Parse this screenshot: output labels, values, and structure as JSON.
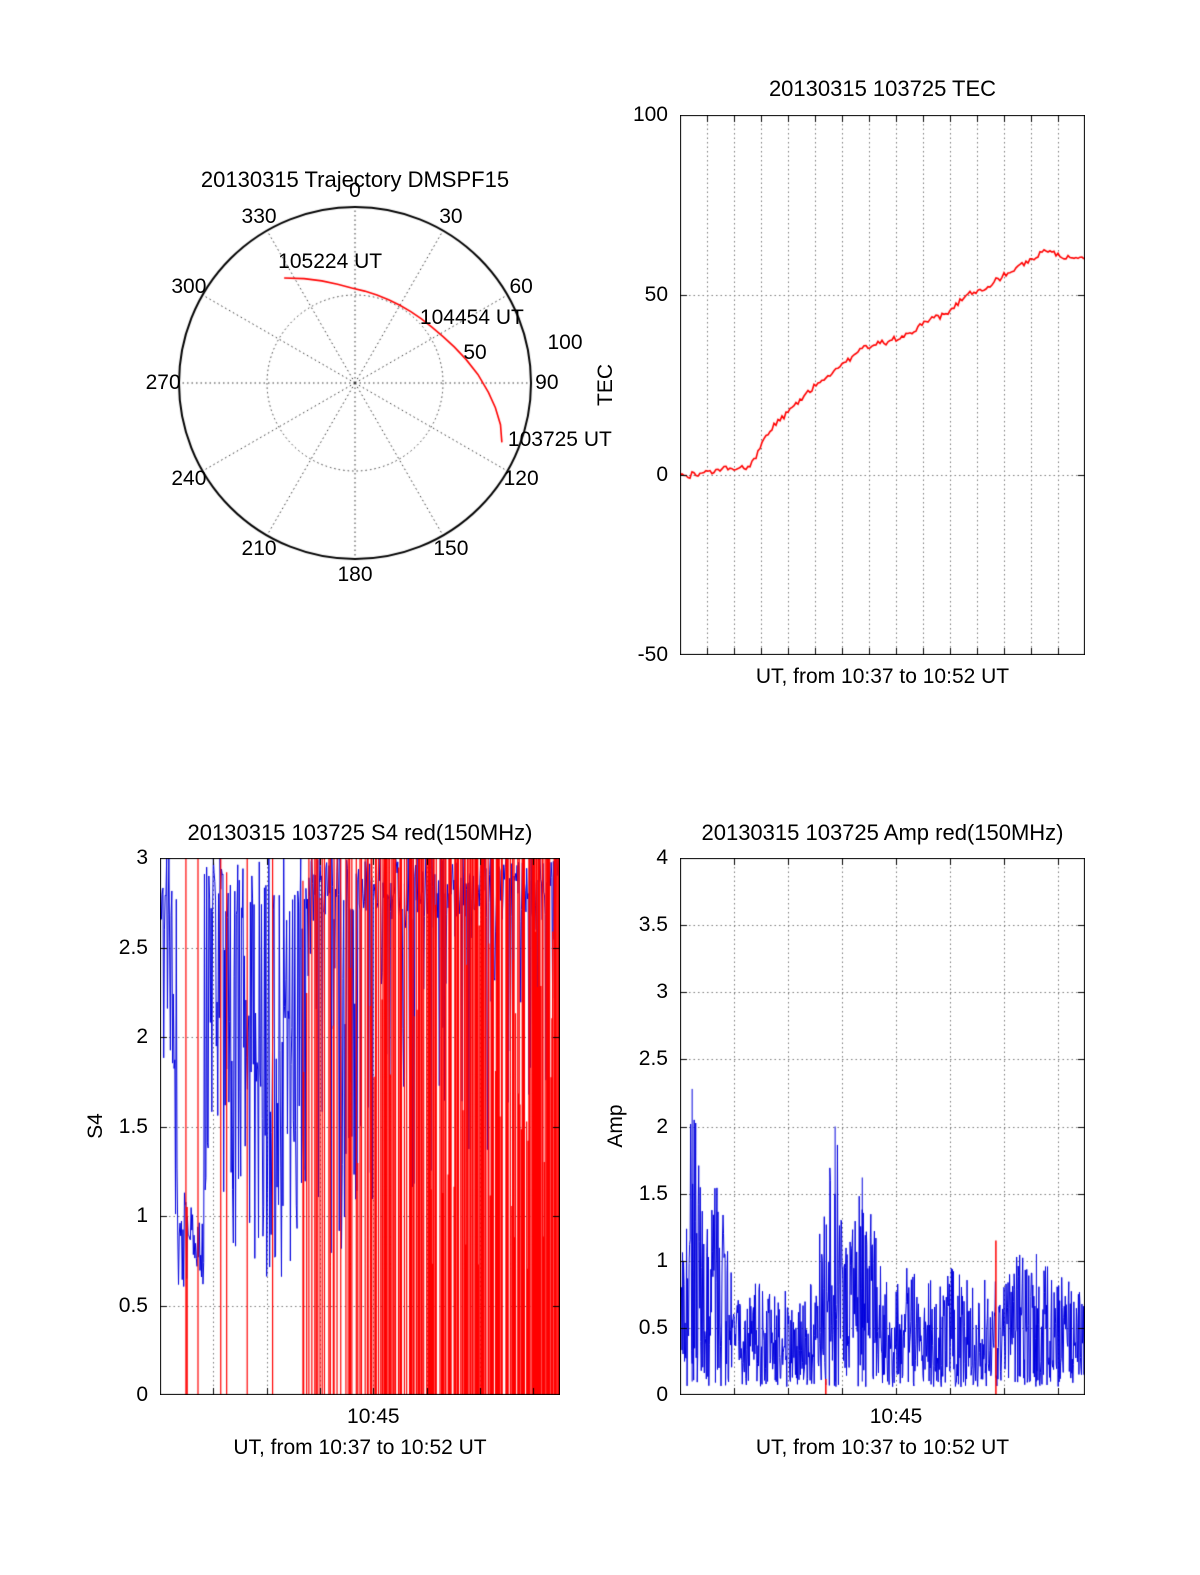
{
  "figure": {
    "background": "#ffffff"
  },
  "chart_data": [
    {
      "id": "trajectory",
      "type": "polar",
      "title": "20130315 Trajectory DMSPF15",
      "trace_color": "#ff0000",
      "rlim": [
        0,
        100
      ],
      "azimuth_tick_labels": [
        "0",
        "30",
        "60",
        "90",
        "120",
        "150",
        "180",
        "210",
        "240",
        "270",
        "300",
        "330"
      ],
      "radial_ticks": [
        {
          "label": "50",
          "value": 50
        },
        {
          "label": "100",
          "value": 100
        }
      ],
      "path_az_r": [
        [
          326,
          72
        ],
        [
          334,
          66
        ],
        [
          342,
          61
        ],
        [
          350,
          57
        ],
        [
          358,
          54
        ],
        [
          6,
          52.5
        ],
        [
          14,
          51.5
        ],
        [
          22,
          51
        ],
        [
          30,
          51
        ],
        [
          38,
          51.5
        ],
        [
          46,
          52.5
        ],
        [
          54,
          54
        ],
        [
          62,
          56.5
        ],
        [
          70,
          60
        ],
        [
          78,
          64.5
        ],
        [
          86,
          70
        ],
        [
          94,
          76
        ],
        [
          100,
          81
        ],
        [
          106,
          86
        ],
        [
          112,
          90
        ]
      ],
      "annotations": [
        {
          "label": "105224 UT",
          "az": 326,
          "r": 72
        },
        {
          "label": "104454 UT",
          "az": 54,
          "r": 54
        },
        {
          "label": "103725 UT",
          "az": 112,
          "r": 90
        }
      ]
    },
    {
      "id": "tec",
      "type": "line",
      "title": "20130315 103725 TEC",
      "ylabel": "TEC",
      "xlabel": "UT, from 10:37 to 10:52 UT",
      "ylim": [
        -50,
        100
      ],
      "yticks": [
        {
          "label": "100",
          "value": 100
        },
        {
          "label": "50",
          "value": 50
        },
        {
          "label": "0",
          "value": 0
        },
        {
          "label": "-50",
          "value": -50
        }
      ],
      "x_start": "10:37",
      "x_end": "10:52",
      "x_minutes": 15,
      "grid_minutes": 1,
      "line_color": "#ff0000",
      "points": [
        [
          0,
          -0.5
        ],
        [
          0.01,
          0.4
        ],
        [
          0.02,
          -1
        ],
        [
          0.03,
          0.6
        ],
        [
          0.04,
          -0.2
        ],
        [
          0.05,
          0.9
        ],
        [
          0.06,
          0.3
        ],
        [
          0.07,
          1.4
        ],
        [
          0.08,
          0.7
        ],
        [
          0.09,
          1.6
        ],
        [
          0.1,
          0.9
        ],
        [
          0.11,
          2
        ],
        [
          0.12,
          1.2
        ],
        [
          0.13,
          2.3
        ],
        [
          0.14,
          1.5
        ],
        [
          0.15,
          2.5
        ],
        [
          0.16,
          1.8
        ],
        [
          0.17,
          2.8
        ],
        [
          0.18,
          3.4
        ],
        [
          0.19,
          5.5
        ],
        [
          0.2,
          8
        ],
        [
          0.21,
          10
        ],
        [
          0.22,
          12
        ],
        [
          0.23,
          13.5
        ],
        [
          0.24,
          14.5
        ],
        [
          0.25,
          15.5
        ],
        [
          0.26,
          16.5
        ],
        [
          0.27,
          18
        ],
        [
          0.28,
          19
        ],
        [
          0.29,
          20
        ],
        [
          0.3,
          21
        ],
        [
          0.31,
          22.5
        ],
        [
          0.32,
          23.5
        ],
        [
          0.33,
          24.5
        ],
        [
          0.34,
          25
        ],
        [
          0.35,
          26
        ],
        [
          0.36,
          27
        ],
        [
          0.37,
          28
        ],
        [
          0.38,
          28.5
        ],
        [
          0.39,
          29.5
        ],
        [
          0.4,
          30.5
        ],
        [
          0.41,
          31.5
        ],
        [
          0.42,
          32
        ],
        [
          0.43,
          33
        ],
        [
          0.44,
          34
        ],
        [
          0.45,
          35
        ],
        [
          0.46,
          35.5
        ],
        [
          0.47,
          36
        ],
        [
          0.48,
          36.5
        ],
        [
          0.49,
          36.5
        ],
        [
          0.5,
          37
        ],
        [
          0.51,
          36.5
        ],
        [
          0.52,
          37.5
        ],
        [
          0.53,
          38
        ],
        [
          0.54,
          37.5
        ],
        [
          0.55,
          38.5
        ],
        [
          0.56,
          39
        ],
        [
          0.57,
          39.5
        ],
        [
          0.58,
          40.5
        ],
        [
          0.59,
          41
        ],
        [
          0.6,
          42
        ],
        [
          0.61,
          43
        ],
        [
          0.62,
          43.5
        ],
        [
          0.63,
          44
        ],
        [
          0.64,
          43.5
        ],
        [
          0.65,
          44.5
        ],
        [
          0.66,
          45
        ],
        [
          0.67,
          46
        ],
        [
          0.68,
          47
        ],
        [
          0.69,
          48
        ],
        [
          0.7,
          49.5
        ],
        [
          0.71,
          50
        ],
        [
          0.72,
          50.5
        ],
        [
          0.73,
          51
        ],
        [
          0.74,
          51
        ],
        [
          0.75,
          51.5
        ],
        [
          0.76,
          52.5
        ],
        [
          0.77,
          53
        ],
        [
          0.78,
          54
        ],
        [
          0.79,
          54.5
        ],
        [
          0.8,
          55.5
        ],
        [
          0.81,
          56
        ],
        [
          0.82,
          56.5
        ],
        [
          0.83,
          57
        ],
        [
          0.84,
          58
        ],
        [
          0.85,
          58.5
        ],
        [
          0.86,
          59.5
        ],
        [
          0.87,
          60
        ],
        [
          0.88,
          61
        ],
        [
          0.89,
          61.5
        ],
        [
          0.9,
          62
        ],
        [
          0.91,
          62.5
        ],
        [
          0.92,
          62
        ],
        [
          0.93,
          61.5
        ],
        [
          0.94,
          61
        ],
        [
          0.95,
          60.5
        ],
        [
          0.96,
          60.5
        ],
        [
          0.97,
          60
        ],
        [
          0.98,
          60
        ],
        [
          0.99,
          60.5
        ],
        [
          1,
          60
        ]
      ]
    },
    {
      "id": "s4",
      "type": "scintillation",
      "title": "20130315 103725 S4 red(150MHz)",
      "ylabel": "S4",
      "xlabel": "UT, from 10:37 to 10:52 UT",
      "ylim": [
        0,
        3
      ],
      "yticks": [
        {
          "label": "3",
          "value": 3
        },
        {
          "label": "2.5",
          "value": 2.5
        },
        {
          "label": "2",
          "value": 2
        },
        {
          "label": "1.5",
          "value": 1.5
        },
        {
          "label": "1",
          "value": 1
        },
        {
          "label": "0.5",
          "value": 0.5
        },
        {
          "label": "0",
          "value": 0
        }
      ],
      "xticks": [
        {
          "label": "10:45",
          "minute": 8
        }
      ],
      "x_minutes": 15,
      "grid_minutes": 2,
      "blue_color": "#0000dd",
      "red_color": "#ff0000",
      "blue_envelope": [
        [
          0,
          1.2,
          3,
          0.85
        ],
        [
          0.03,
          1.2,
          3,
          0.6
        ],
        [
          0.045,
          0.6,
          1.2,
          0
        ],
        [
          0.11,
          0.55,
          1,
          0
        ],
        [
          0.125,
          0.7,
          3,
          0.55
        ],
        [
          0.2,
          0.7,
          3,
          0.5
        ],
        [
          0.22,
          0.6,
          2.2,
          0.15
        ],
        [
          0.3,
          0.6,
          2,
          0.2
        ],
        [
          0.34,
          0.7,
          3,
          0.45
        ],
        [
          0.45,
          0.8,
          3,
          0.55
        ],
        [
          0.55,
          0.9,
          3,
          0.65
        ],
        [
          0.7,
          1.1,
          3,
          0.75
        ],
        [
          0.85,
          1.3,
          3,
          0.8
        ],
        [
          1,
          1.4,
          3,
          0.82
        ]
      ],
      "red_prob": [
        [
          0,
          0
        ],
        [
          0.05,
          0
        ],
        [
          0.07,
          0.04
        ],
        [
          0.1,
          0.03
        ],
        [
          0.13,
          0.02
        ],
        [
          0.18,
          0.04
        ],
        [
          0.25,
          0.06
        ],
        [
          0.3,
          0.1
        ],
        [
          0.35,
          0.18
        ],
        [
          0.45,
          0.3
        ],
        [
          0.55,
          0.45
        ],
        [
          0.65,
          0.55
        ],
        [
          0.75,
          0.68
        ],
        [
          0.85,
          0.8
        ],
        [
          1,
          0.85
        ]
      ],
      "red_events": [
        [
          0.068,
          1.05
        ],
        [
          0.095,
          3
        ],
        [
          0.218,
          3
        ]
      ]
    },
    {
      "id": "amp",
      "type": "scintillation",
      "title": "20130315 103725 Amp red(150MHz)",
      "ylabel": "Amp",
      "xlabel": "UT, from 10:37 to 10:52 UT",
      "ylim": [
        0,
        4
      ],
      "yticks": [
        {
          "label": "4",
          "value": 4
        },
        {
          "label": "3.5",
          "value": 3.5
        },
        {
          "label": "3",
          "value": 3
        },
        {
          "label": "2.5",
          "value": 2.5
        },
        {
          "label": "2",
          "value": 2
        },
        {
          "label": "1.5",
          "value": 1.5
        },
        {
          "label": "1",
          "value": 1
        },
        {
          "label": "0.5",
          "value": 0.5
        },
        {
          "label": "0",
          "value": 0
        }
      ],
      "xticks": [
        {
          "label": "10:45",
          "minute": 8
        }
      ],
      "x_minutes": 15,
      "grid_minutes": 2,
      "blue_color": "#0000dd",
      "red_color": "#ff0000",
      "envelope": [
        [
          0,
          1
        ],
        [
          0.015,
          1.3
        ],
        [
          0.03,
          2.3
        ],
        [
          0.05,
          1.75
        ],
        [
          0.08,
          1.7
        ],
        [
          0.11,
          1.3
        ],
        [
          0.13,
          0.9
        ],
        [
          0.16,
          0.6
        ],
        [
          0.19,
          0.9
        ],
        [
          0.22,
          0.75
        ],
        [
          0.26,
          0.8
        ],
        [
          0.3,
          0.7
        ],
        [
          0.33,
          0.9
        ],
        [
          0.36,
          1.5
        ],
        [
          0.385,
          2
        ],
        [
          0.41,
          1.1
        ],
        [
          0.44,
          1.5
        ],
        [
          0.47,
          1.4
        ],
        [
          0.5,
          0.9
        ],
        [
          0.53,
          0.8
        ],
        [
          0.56,
          1.1
        ],
        [
          0.6,
          0.9
        ],
        [
          0.64,
          0.8
        ],
        [
          0.68,
          1
        ],
        [
          0.72,
          0.8
        ],
        [
          0.76,
          0.9
        ],
        [
          0.8,
          0.95
        ],
        [
          0.84,
          1.05
        ],
        [
          0.88,
          0.9
        ],
        [
          0.92,
          1
        ],
        [
          0.96,
          0.85
        ],
        [
          1,
          0.8
        ]
      ],
      "spikes": [
        [
          0.03,
          2.28
        ],
        [
          0.383,
          2.0
        ],
        [
          0.45,
          1.62
        ],
        [
          0.88,
          1.05
        ]
      ],
      "red_events": [
        [
          0.36,
          0.12
        ],
        [
          0.78,
          1.15
        ]
      ]
    }
  ]
}
